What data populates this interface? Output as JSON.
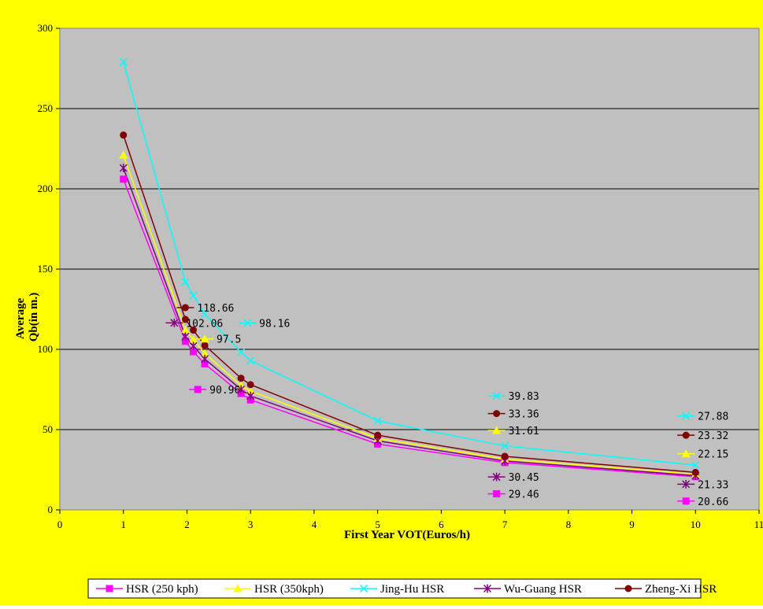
{
  "chart_data": {
    "type": "line",
    "title": "",
    "xlabel": "First Year VOT(Euros/h)",
    "ylabel_lines": [
      "Average",
      "Qb(in m.)"
    ],
    "xlim": [
      0,
      11
    ],
    "ylim": [
      0,
      300
    ],
    "x_ticks": [
      "0",
      "1",
      "2",
      "3",
      "4",
      "5",
      "6",
      "7",
      "8",
      "9",
      "10",
      "11"
    ],
    "y_ticks": [
      "0",
      "50",
      "100",
      "150",
      "200",
      "250",
      "300"
    ],
    "x": [
      1,
      1.975,
      2.1,
      2.28,
      2.85,
      3,
      5,
      7,
      10
    ],
    "grid": "horizontal",
    "legend_position": "bottom",
    "colors": {
      "figure_background": "#ffff00",
      "plot_background": "#c0c0c0",
      "gridline": "#000000"
    },
    "series": [
      {
        "name": "HSR (250 kph)",
        "color": "#ff00ff",
        "marker": "square",
        "values": [
          206,
          105,
          98.5,
          90.96,
          72.5,
          68.5,
          41,
          29.46,
          20.66
        ]
      },
      {
        "name": "HSR (350kph)",
        "color": "#ffff00",
        "marker": "triangle",
        "values": [
          221,
          112,
          106,
          97.5,
          77.5,
          74,
          44.5,
          31.61,
          22.15
        ]
      },
      {
        "name": "Jing-Hu HSR",
        "color": "#00ffff",
        "marker": "x",
        "values": [
          279,
          142,
          133.5,
          122,
          98.16,
          93,
          55.5,
          39.83,
          27.88
        ]
      },
      {
        "name": "Wu-Guang HSR",
        "color": "#800080",
        "marker": "star",
        "values": [
          213,
          108,
          102.06,
          94,
          75,
          71,
          43,
          30.45,
          21.33
        ]
      },
      {
        "name": "Zheng-Xi HSR",
        "color": "#800000",
        "marker": "circle",
        "values": [
          233.5,
          118.66,
          112,
          102.5,
          82,
          78,
          46.5,
          33.36,
          23.32
        ]
      }
    ],
    "data_labels": [
      {
        "text": "118.66",
        "series": 4,
        "x": 1.975,
        "y": 126
      },
      {
        "text": "102.06",
        "series": 3,
        "x": 1.8,
        "y": 116.5
      },
      {
        "text": "98.16",
        "series": 2,
        "x": 2.95,
        "y": 116.5
      },
      {
        "text": "97.5",
        "series": 1,
        "x": 2.28,
        "y": 106.5
      },
      {
        "text": "90.96",
        "series": 0,
        "x": 2.17,
        "y": 75
      },
      {
        "text": "39.83",
        "series": 2,
        "x": 6.87,
        "y": 71
      },
      {
        "text": "33.36",
        "series": 4,
        "x": 6.87,
        "y": 60
      },
      {
        "text": "31.61",
        "series": 1,
        "x": 6.87,
        "y": 49.5
      },
      {
        "text": "30.45",
        "series": 3,
        "x": 6.87,
        "y": 20.5
      },
      {
        "text": "29.46",
        "series": 0,
        "x": 6.87,
        "y": 10
      },
      {
        "text": "27.88",
        "series": 2,
        "x": 9.85,
        "y": 58.5
      },
      {
        "text": "23.32",
        "series": 4,
        "x": 9.85,
        "y": 46.5
      },
      {
        "text": "22.15",
        "series": 1,
        "x": 9.85,
        "y": 35
      },
      {
        "text": "21.33",
        "series": 3,
        "x": 9.85,
        "y": 16
      },
      {
        "text": "20.66",
        "series": 0,
        "x": 9.85,
        "y": 5.5
      }
    ]
  }
}
